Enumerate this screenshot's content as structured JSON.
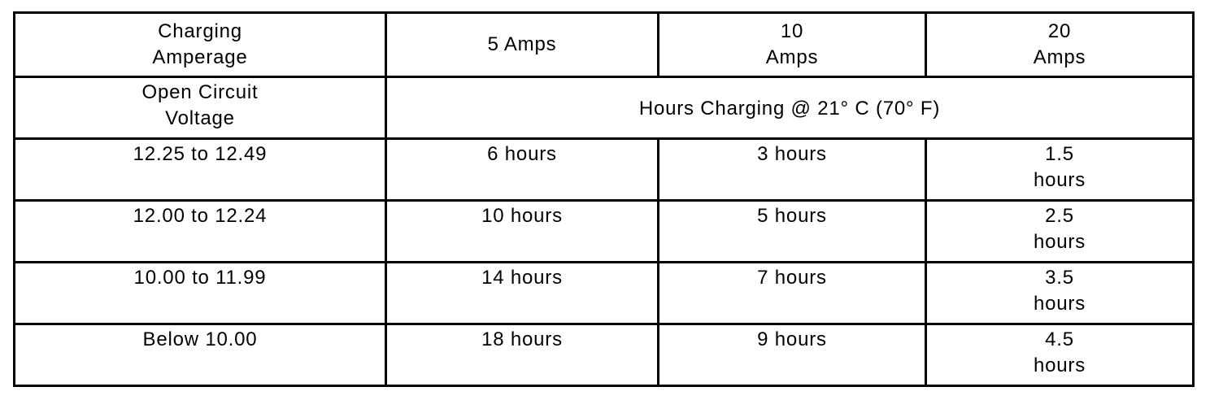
{
  "header": {
    "row1": [
      "Charging Amperage",
      "5 Amps",
      "10 Amps",
      "20 Amps"
    ],
    "row2_label": "Open Circuit Voltage",
    "row2_span": "Hours Charging @ 21° C (70° F)"
  },
  "rows": [
    [
      "12.25 to 12.49",
      "6 hours",
      "3 hours",
      "1.5 hours"
    ],
    [
      "12.00 to 12.24",
      "10 hours",
      "5 hours",
      "2.5 hours"
    ],
    [
      "10.00 to 11.99",
      "14 hours",
      "7 hours",
      "3.5 hours"
    ],
    [
      "Below 10.00",
      "18 hours",
      "9 hours",
      "4.5 hours"
    ]
  ]
}
